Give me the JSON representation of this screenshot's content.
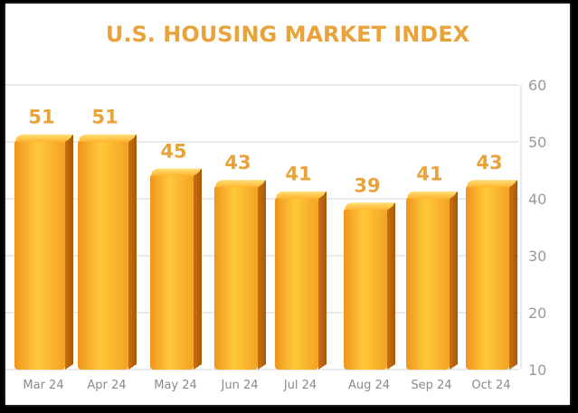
{
  "chart_data": {
    "type": "bar",
    "title": "U.S. HOUSING MARKET INDEX",
    "categories": [
      "Mar 24",
      "Apr 24",
      "May 24",
      "Jun 24",
      "Jul 24",
      "Aug 24",
      "Sep 24",
      "Oct 24"
    ],
    "values": [
      51,
      51,
      45,
      43,
      41,
      39,
      41,
      43
    ],
    "ylim": [
      10,
      60
    ],
    "yticks": [
      "10",
      "20",
      "30",
      "40",
      "50",
      "60"
    ],
    "y_axis_side": "right",
    "grid": true,
    "legend": "none",
    "xlabel": "",
    "ylabel": ""
  },
  "colors": {
    "title": "#E8A33A",
    "data_label": "#E8A33A",
    "bar_dark": "#D9841C",
    "bar_mid": "#F5A623",
    "bar_light": "#FFD24D",
    "grid": "#D6D6D6",
    "tick": "#9A9A9A"
  }
}
